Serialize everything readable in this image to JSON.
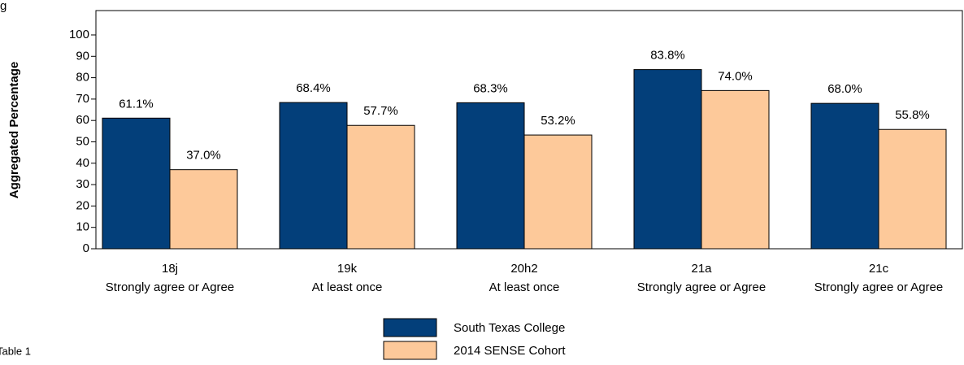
{
  "corner_text": "g",
  "footer_text": "Table 1",
  "chart_data": {
    "type": "bar",
    "y_label": "Aggregated Percentage",
    "categories": [
      [
        "18j",
        "Strongly agree or Agree"
      ],
      [
        "19k",
        "At least once"
      ],
      [
        "20h2",
        "At least once"
      ],
      [
        "21a",
        "Strongly agree or Agree"
      ],
      [
        "21c",
        "Strongly agree or Agree"
      ]
    ],
    "series": [
      {
        "name": "South Texas College",
        "color": "#033f7a",
        "values": [
          61.1,
          68.4,
          68.3,
          83.8,
          68.0
        ],
        "value_labels": [
          "61.1%",
          "68.4%",
          "68.3%",
          "83.8%",
          "68.0%"
        ]
      },
      {
        "name": "2014 SENSE Cohort",
        "color": "#fdc99a",
        "values": [
          37.0,
          57.7,
          53.2,
          74.0,
          55.8
        ],
        "value_labels": [
          "37.0%",
          "57.7%",
          "53.2%",
          "74.0%",
          "55.8%"
        ]
      }
    ],
    "ylim": [
      0,
      111.4
    ],
    "yticks": [
      0,
      10,
      20,
      30,
      40,
      50,
      60,
      70,
      80,
      90,
      100
    ],
    "legend": "bottom"
  }
}
